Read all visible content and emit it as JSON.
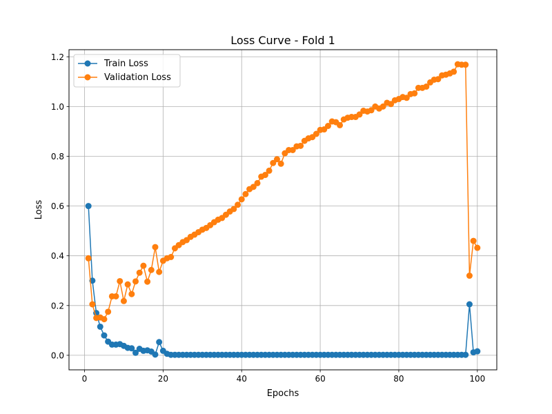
{
  "chart_data": {
    "type": "line",
    "title": "Loss Curve - Fold 1",
    "xlabel": "Epochs",
    "ylabel": "Loss",
    "xlim": [
      -3.95,
      104.95
    ],
    "ylim": [
      -0.0585,
      1.2285
    ],
    "xticks": [
      0,
      20,
      40,
      60,
      80,
      100
    ],
    "yticks": [
      0.0,
      0.2,
      0.4,
      0.6,
      0.8,
      1.0,
      1.2
    ],
    "xtick_labels": [
      "0",
      "20",
      "40",
      "60",
      "80",
      "100"
    ],
    "ytick_labels": [
      "0.0",
      "0.2",
      "0.4",
      "0.6",
      "0.8",
      "1.0",
      "1.2"
    ],
    "grid": true,
    "legend_position": "top-left",
    "x": [
      1,
      2,
      3,
      4,
      5,
      6,
      7,
      8,
      9,
      10,
      11,
      12,
      13,
      14,
      15,
      16,
      17,
      18,
      19,
      20,
      21,
      22,
      23,
      24,
      25,
      26,
      27,
      28,
      29,
      30,
      31,
      32,
      33,
      34,
      35,
      36,
      37,
      38,
      39,
      40,
      41,
      42,
      43,
      44,
      45,
      46,
      47,
      48,
      49,
      50,
      51,
      52,
      53,
      54,
      55,
      56,
      57,
      58,
      59,
      60,
      61,
      62,
      63,
      64,
      65,
      66,
      67,
      68,
      69,
      70,
      71,
      72,
      73,
      74,
      75,
      76,
      77,
      78,
      79,
      80,
      81,
      82,
      83,
      84,
      85,
      86,
      87,
      88,
      89,
      90,
      91,
      92,
      93,
      94,
      95,
      96,
      97,
      98,
      99,
      100
    ],
    "series": [
      {
        "name": "Train Loss",
        "color": "#1f77b4",
        "values": [
          0.6,
          0.3,
          0.17,
          0.115,
          0.08,
          0.055,
          0.043,
          0.043,
          0.045,
          0.038,
          0.03,
          0.028,
          0.01,
          0.026,
          0.018,
          0.02,
          0.015,
          0.003,
          0.053,
          0.018,
          0.006,
          0.002,
          0.002,
          0.002,
          0.002,
          0.002,
          0.002,
          0.002,
          0.002,
          0.002,
          0.002,
          0.002,
          0.002,
          0.002,
          0.002,
          0.002,
          0.002,
          0.002,
          0.002,
          0.002,
          0.002,
          0.002,
          0.002,
          0.002,
          0.002,
          0.002,
          0.002,
          0.002,
          0.002,
          0.002,
          0.002,
          0.002,
          0.002,
          0.002,
          0.002,
          0.002,
          0.002,
          0.002,
          0.002,
          0.002,
          0.002,
          0.002,
          0.002,
          0.002,
          0.002,
          0.002,
          0.002,
          0.002,
          0.002,
          0.002,
          0.002,
          0.002,
          0.002,
          0.002,
          0.002,
          0.002,
          0.002,
          0.002,
          0.002,
          0.002,
          0.002,
          0.002,
          0.002,
          0.002,
          0.002,
          0.002,
          0.002,
          0.002,
          0.002,
          0.002,
          0.002,
          0.002,
          0.002,
          0.002,
          0.002,
          0.002,
          0.002,
          0.205,
          0.012,
          0.016
        ]
      },
      {
        "name": "Validation Loss",
        "color": "#ff7f0e",
        "values": [
          0.39,
          0.205,
          0.15,
          0.152,
          0.145,
          0.175,
          0.237,
          0.237,
          0.298,
          0.218,
          0.285,
          0.246,
          0.297,
          0.332,
          0.36,
          0.296,
          0.343,
          0.435,
          0.335,
          0.38,
          0.39,
          0.395,
          0.43,
          0.443,
          0.455,
          0.463,
          0.476,
          0.485,
          0.495,
          0.505,
          0.512,
          0.523,
          0.535,
          0.545,
          0.552,
          0.565,
          0.578,
          0.588,
          0.605,
          0.627,
          0.648,
          0.668,
          0.677,
          0.692,
          0.718,
          0.725,
          0.742,
          0.773,
          0.788,
          0.77,
          0.812,
          0.825,
          0.825,
          0.84,
          0.842,
          0.862,
          0.872,
          0.877,
          0.89,
          0.906,
          0.908,
          0.922,
          0.94,
          0.937,
          0.925,
          0.948,
          0.955,
          0.958,
          0.958,
          0.968,
          0.983,
          0.98,
          0.985,
          1.0,
          0.992,
          1.0,
          1.015,
          1.01,
          1.025,
          1.03,
          1.038,
          1.035,
          1.05,
          1.053,
          1.075,
          1.075,
          1.08,
          1.097,
          1.108,
          1.11,
          1.125,
          1.128,
          1.133,
          1.14,
          1.17,
          1.168,
          1.168,
          0.32,
          0.46,
          0.432
        ]
      }
    ]
  }
}
